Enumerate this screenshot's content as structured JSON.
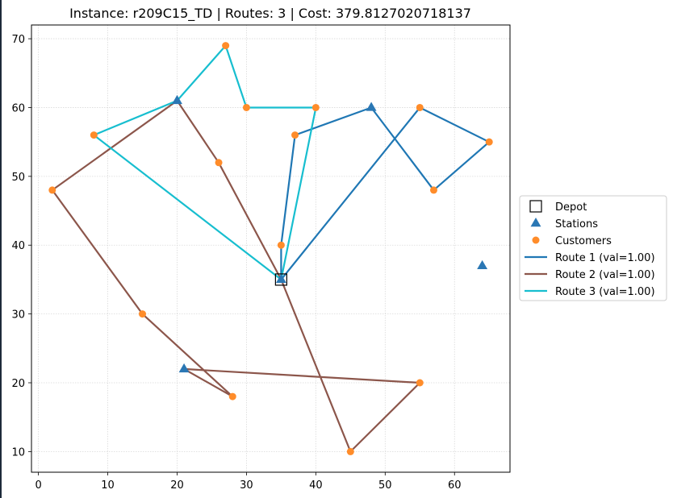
{
  "chart_data": {
    "type": "scatter",
    "title": "Instance: r209C15_TD  |  Routes: 3  |  Cost: 379.8127020718137",
    "xlabel": "",
    "ylabel": "",
    "xlim": [
      -1,
      68
    ],
    "ylim": [
      7,
      72
    ],
    "xticks": [
      0,
      10,
      20,
      30,
      40,
      50,
      60
    ],
    "yticks": [
      10,
      20,
      30,
      40,
      50,
      60,
      70
    ],
    "grid": true,
    "legend_position": "right",
    "depot": {
      "name": "Depot",
      "x": 35,
      "y": 35,
      "color": "#000000"
    },
    "stations": {
      "name": "Stations",
      "color": "#2a77b4",
      "points": [
        [
          20,
          61
        ],
        [
          48,
          60
        ],
        [
          21,
          22
        ],
        [
          64,
          37
        ],
        [
          35,
          35
        ]
      ]
    },
    "customers": {
      "name": "Customers",
      "color": "#ff8c2a",
      "points": [
        [
          27,
          69
        ],
        [
          30,
          60
        ],
        [
          40,
          60
        ],
        [
          55,
          60
        ],
        [
          8,
          56
        ],
        [
          37,
          56
        ],
        [
          65,
          55
        ],
        [
          26,
          52
        ],
        [
          2,
          48
        ],
        [
          57,
          48
        ],
        [
          35,
          40
        ],
        [
          15,
          30
        ],
        [
          28,
          18
        ],
        [
          55,
          20
        ],
        [
          45,
          10
        ]
      ]
    },
    "series": [
      {
        "name": "Route 1 (val=1.00)",
        "color": "#1f77b4",
        "points": [
          [
            35,
            35
          ],
          [
            35,
            40
          ],
          [
            37,
            56
          ],
          [
            48,
            60
          ],
          [
            57,
            48
          ],
          [
            65,
            55
          ],
          [
            55,
            60
          ],
          [
            35,
            35
          ]
        ]
      },
      {
        "name": "Route 2 (val=1.00)",
        "color": "#8c564b",
        "points": [
          [
            35,
            35
          ],
          [
            26,
            52
          ],
          [
            20,
            61
          ],
          [
            2,
            48
          ],
          [
            15,
            30
          ],
          [
            28,
            18
          ],
          [
            21,
            22
          ],
          [
            55,
            20
          ],
          [
            45,
            10
          ],
          [
            35,
            35
          ]
        ]
      },
      {
        "name": "Route 3 (val=1.00)",
        "color": "#17becf",
        "points": [
          [
            35,
            35
          ],
          [
            40,
            60
          ],
          [
            30,
            60
          ],
          [
            27,
            69
          ],
          [
            20,
            61
          ],
          [
            8,
            56
          ],
          [
            35,
            35
          ]
        ]
      }
    ]
  }
}
